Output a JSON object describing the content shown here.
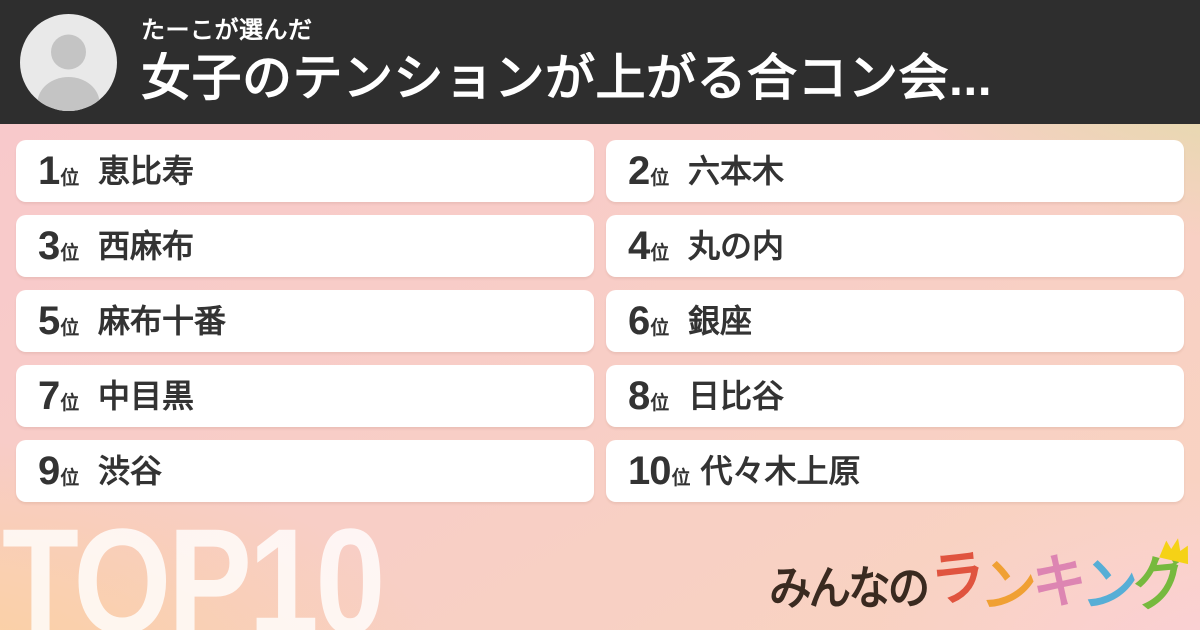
{
  "header": {
    "subtitle": "たーこが選んだ",
    "title": "女子のテンションが上がる合コン会..."
  },
  "ranking": {
    "rank_suffix": "位",
    "items": [
      {
        "rank": "1",
        "name": "恵比寿"
      },
      {
        "rank": "2",
        "name": "六本木"
      },
      {
        "rank": "3",
        "name": "西麻布"
      },
      {
        "rank": "4",
        "name": "丸の内"
      },
      {
        "rank": "5",
        "name": "麻布十番"
      },
      {
        "rank": "6",
        "name": "銀座"
      },
      {
        "rank": "7",
        "name": "中目黒"
      },
      {
        "rank": "8",
        "name": "日比谷"
      },
      {
        "rank": "9",
        "name": "渋谷"
      },
      {
        "rank": "10",
        "name": "代々木上原"
      }
    ]
  },
  "footer": {
    "watermark": "TOP10",
    "logo": {
      "prefix": "みんなの",
      "colored": [
        {
          "char": "ラ",
          "color": "#e0543f"
        },
        {
          "char": "ン",
          "color": "#f0a033"
        },
        {
          "char": "キ",
          "color": "#dd85b2"
        },
        {
          "char": "ン",
          "color": "#56aed6"
        },
        {
          "char": "グ",
          "color": "#76b93e"
        }
      ],
      "crown_color": "#f5d216"
    }
  },
  "colors": {
    "header_bg": "#2e2e2e",
    "card_bg": "#ffffff",
    "text": "#333333",
    "avatar_bg": "#e9e9e9",
    "avatar_silhouette": "#c4c4c4",
    "bg_top_left": "#f8c8cc",
    "bg_top_right": "#d2e695",
    "bg_bottom_left": "#fbd29c",
    "bg_bottom_right": "#fbcfd9",
    "watermark_color": "rgba(255,255,255,0.8)",
    "logo_prefix_color": "#3a2a20"
  }
}
